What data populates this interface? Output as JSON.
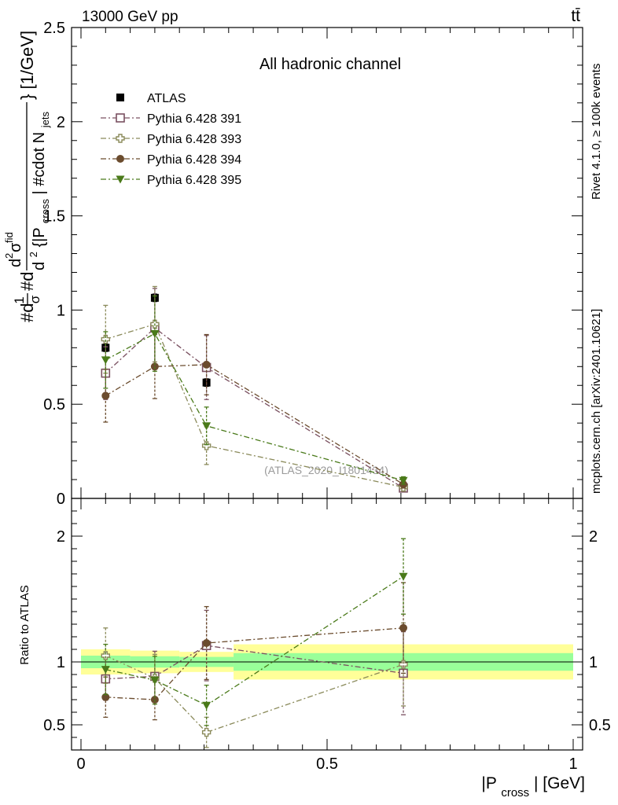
{
  "header": {
    "energy_label": "13000 GeV pp",
    "process_label": "tt̄",
    "channel_title": "All hadronic channel",
    "side_label_rivet": "Rivet 4.1.0, ≥ 100k events",
    "side_label_mcplots": "mcplots.cern.ch [arXiv:2401.10621]",
    "analysis_watermark": "(ATLAS_2020_I1801434)"
  },
  "colors": {
    "atlas": "#000000",
    "p391": "#7a5060",
    "p393": "#8a8a5a",
    "p394": "#6b4c2e",
    "p395": "#4a7a1a",
    "band_yellow": "#ffff99",
    "band_green": "#99ff99"
  },
  "chart_data": [
    {
      "type": "scatter",
      "panel": "main",
      "title": "All hadronic channel",
      "xlabel": "|P_cross| [GeV]",
      "ylabel": "#d1/σ#d d²σ^fid / d²{|P_cross| #cdot N_jets} [1/GeV]",
      "ylabel_parts": {
        "prefix": "#d",
        "frac_num": "1",
        "frac_den": "σ",
        "mid": "#d",
        "d2": "d",
        "sup2": "2",
        "sigma": "σ",
        "sup_fid": "fid",
        "den_open": "d",
        "den_sup": "2",
        "den_body": " {|P",
        "den_sub_cross": "cross",
        "den_tail": "| #cdot N",
        "den_sub_jets": "jets",
        "close_brace": "}",
        "units": " [1/GeV]"
      },
      "xlim": [
        0,
        1
      ],
      "ylim": [
        0,
        2.5
      ],
      "yticks": [
        0,
        0.5,
        1,
        1.5,
        2,
        2.5
      ],
      "ytick_labels": [
        "0",
        "0.5",
        "1",
        "1.5",
        "2",
        "2.5"
      ],
      "legend_position": "top-left",
      "series": [
        {
          "name": "ATLAS",
          "color_key": "atlas",
          "marker": "filled-square",
          "line": "none",
          "x": [
            0.05,
            0.15,
            0.255,
            0.655
          ],
          "y": [
            0.8,
            1.065,
            0.615,
            0.06
          ],
          "err": [
            0.02,
            0.02,
            0.02,
            0.01
          ]
        },
        {
          "name": "Pythia 6.428 391",
          "color_key": "p391",
          "marker": "open-square",
          "line": "dashdot",
          "x": [
            0.05,
            0.15,
            0.255,
            0.655
          ],
          "y": [
            0.665,
            0.905,
            0.695,
            0.055
          ],
          "err": [
            0.14,
            0.21,
            0.17,
            0.02
          ]
        },
        {
          "name": "Pythia 6.428 393",
          "color_key": "p393",
          "marker": "open-cross",
          "line": "dashdot",
          "x": [
            0.05,
            0.15,
            0.255,
            0.655
          ],
          "y": [
            0.845,
            0.925,
            0.28,
            0.06
          ],
          "err": [
            0.18,
            0.2,
            0.1,
            0.02
          ]
        },
        {
          "name": "Pythia 6.428 394",
          "color_key": "p394",
          "marker": "filled-circle",
          "line": "dashdot",
          "x": [
            0.05,
            0.15,
            0.255,
            0.655
          ],
          "y": [
            0.545,
            0.7,
            0.71,
            0.075
          ],
          "err": [
            0.14,
            0.17,
            0.16,
            0.02
          ]
        },
        {
          "name": "Pythia 6.428 395",
          "color_key": "p395",
          "marker": "filled-triangle-down",
          "line": "dashdot",
          "x": [
            0.05,
            0.15,
            0.255,
            0.655
          ],
          "y": [
            0.735,
            0.875,
            0.385,
            0.095
          ],
          "err": [
            0.15,
            0.2,
            0.1,
            0.02
          ]
        }
      ],
      "legend": [
        {
          "label": "ATLAS",
          "series_index": 0
        },
        {
          "label": "Pythia 6.428 391",
          "series_index": 1
        },
        {
          "label": "Pythia 6.428 393",
          "series_index": 2
        },
        {
          "label": "Pythia 6.428 394",
          "series_index": 3
        },
        {
          "label": "Pythia 6.428 395",
          "series_index": 4
        }
      ]
    },
    {
      "type": "scatter",
      "panel": "ratio",
      "xlabel": "|P_cross| [GeV]",
      "xlabel_parts": {
        "open": "|P",
        "sub": "cross",
        "close": "| [GeV]"
      },
      "ylabel": "Ratio to ATLAS",
      "xlim": [
        0,
        1
      ],
      "ylim": [
        0.3,
        2.3
      ],
      "xticks": [
        0,
        0.5,
        1
      ],
      "xtick_labels": [
        "0",
        "0.5",
        "1"
      ],
      "yticks": [
        0.5,
        1,
        2
      ],
      "ytick_labels": [
        "0.5",
        "1",
        "2"
      ],
      "bands": {
        "bins": [
          [
            0,
            0.1
          ],
          [
            0.1,
            0.2
          ],
          [
            0.2,
            0.31
          ],
          [
            0.31,
            1.0
          ]
        ],
        "yellow": [
          [
            0.9,
            1.1
          ],
          [
            0.91,
            1.09
          ],
          [
            0.92,
            1.08
          ],
          [
            0.86,
            1.14
          ]
        ],
        "green": [
          [
            0.95,
            1.05
          ],
          [
            0.955,
            1.045
          ],
          [
            0.96,
            1.04
          ],
          [
            0.93,
            1.07
          ]
        ]
      },
      "series": [
        {
          "name": "Pythia 6.428 391",
          "color_key": "p391",
          "marker": "open-square",
          "x": [
            0.05,
            0.15,
            0.255,
            0.655
          ],
          "y": [
            0.865,
            0.885,
            1.13,
            0.91
          ],
          "err": [
            0.17,
            0.2,
            0.28,
            0.33
          ]
        },
        {
          "name": "Pythia 6.428 393",
          "color_key": "p393",
          "marker": "open-cross",
          "x": [
            0.05,
            0.15,
            0.255,
            0.655
          ],
          "y": [
            1.05,
            0.87,
            0.44,
            0.98
          ],
          "err": [
            0.22,
            0.19,
            0.12,
            0.33
          ]
        },
        {
          "name": "Pythia 6.428 394",
          "color_key": "p394",
          "marker": "filled-circle",
          "x": [
            0.05,
            0.15,
            0.255,
            0.655
          ],
          "y": [
            0.72,
            0.7,
            1.15,
            1.27
          ],
          "err": [
            0.16,
            0.16,
            0.29,
            0.36
          ]
        },
        {
          "name": "Pythia 6.428 395",
          "color_key": "p395",
          "marker": "filled-triangle-down",
          "x": [
            0.05,
            0.15,
            0.255,
            0.655
          ],
          "y": [
            0.94,
            0.855,
            0.655,
            1.68
          ],
          "err": [
            0.2,
            0.19,
            0.16,
            0.3
          ]
        }
      ]
    }
  ]
}
